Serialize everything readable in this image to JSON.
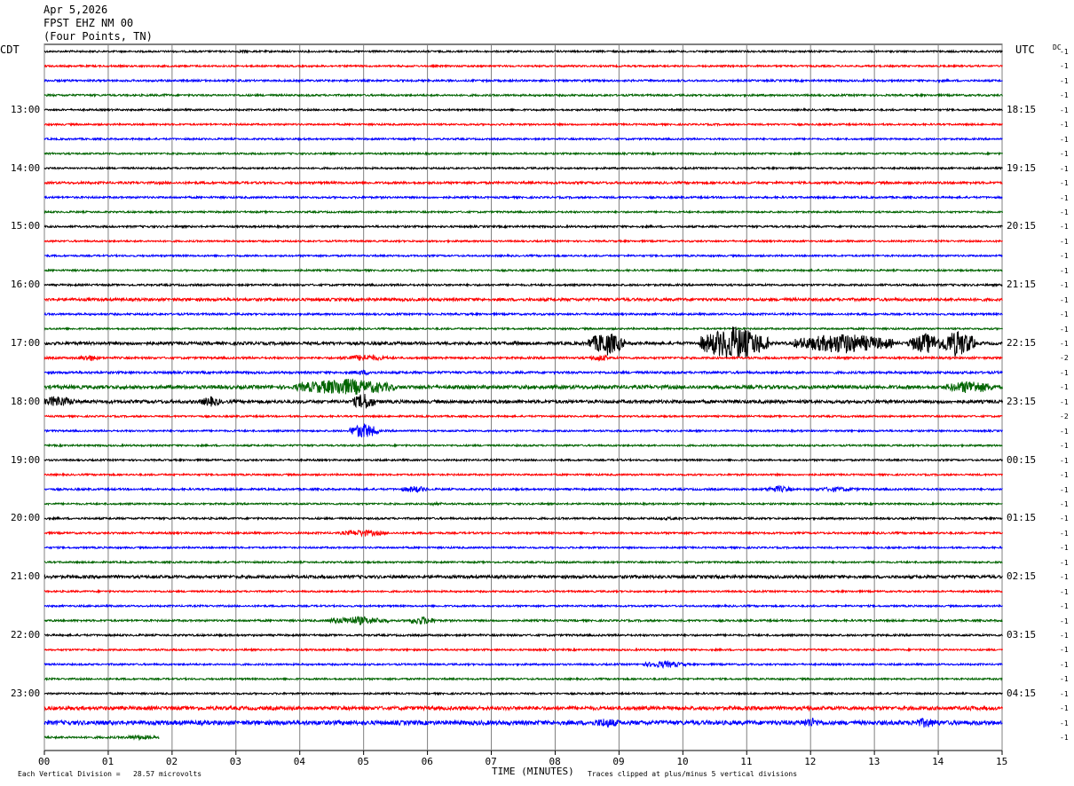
{
  "header": {
    "date": "Apr 5,2026",
    "station": "FPST EHZ NM 00",
    "location": "(Four Points, TN)"
  },
  "left_zone_label": "CDT",
  "right_zone_label": "UTC",
  "dc_label": "DC",
  "footer": {
    "division_note": "Each Vertical Division =   28.57 microvolts",
    "x_axis_title": "TIME (MINUTES)",
    "clip_note": "Traces clipped at plus/minus 5 vertical divisions"
  },
  "colors": {
    "trace_cycle": [
      "#000000",
      "#ff0000",
      "#0000ff",
      "#006400"
    ],
    "grid": "#808080"
  },
  "chart_data": {
    "type": "line",
    "subtype": "helicorder",
    "x_unit": "minutes",
    "xlim": [
      0,
      15
    ],
    "x_ticks": [
      "00",
      "01",
      "02",
      "03",
      "04",
      "05",
      "06",
      "07",
      "08",
      "09",
      "10",
      "11",
      "12",
      "13",
      "14",
      "15"
    ],
    "rows_per_hour": 4,
    "minutes_per_row": 15,
    "start_time_cdt": "12:00",
    "left_hour_labels": [
      "13:00",
      "14:00",
      "15:00",
      "16:00",
      "17:00",
      "18:00",
      "19:00",
      "20:00",
      "21:00",
      "22:00",
      "23:00"
    ],
    "right_hour_labels": [
      "18:15",
      "19:15",
      "20:15",
      "21:15",
      "22:15",
      "23:15",
      "00:15",
      "01:15",
      "02:15",
      "03:15",
      "04:15"
    ],
    "dc_offsets": [
      "-1",
      "-1",
      "-1",
      "-1",
      "-1",
      "-1",
      "-1",
      "-1",
      "-1",
      "-1",
      "-1",
      "-1",
      "-1",
      "-1",
      "-1",
      "-1",
      "-1",
      "-1",
      "-1",
      "-1",
      "-1",
      "-2",
      "-1",
      "-1",
      "-1",
      "-2",
      "-1",
      "-1",
      "-1",
      "-1",
      "-1",
      "-1",
      "-1",
      "-1",
      "-1",
      "-1",
      "-1",
      "-1",
      "-1",
      "-1",
      "-1",
      "-1",
      "-1",
      "-1",
      "-1",
      "-1",
      "-1",
      "-1"
    ],
    "row_noise": [
      1.0,
      1.0,
      1.1,
      1.1,
      1.0,
      1.0,
      1.0,
      1.0,
      1.0,
      1.3,
      1.1,
      1.0,
      1.1,
      1.0,
      1.0,
      1.0,
      1.1,
      1.6,
      1.1,
      1.0,
      1.7,
      1.2,
      1.3,
      2.0,
      1.8,
      1.0,
      1.0,
      1.0,
      1.0,
      1.0,
      1.1,
      1.0,
      1.1,
      1.1,
      1.0,
      1.0,
      1.7,
      1.0,
      1.0,
      1.1,
      1.1,
      1.0,
      1.0,
      1.0,
      1.0,
      2.0,
      2.4,
      1.2
    ],
    "events": [
      {
        "row": 0,
        "minute": 3.1,
        "amp": 1.5,
        "duration": 0.3
      },
      {
        "row": 0,
        "minute": 9.5,
        "amp": 1.2,
        "duration": 0.2
      },
      {
        "row": 2,
        "minute": 14.0,
        "amp": 1.5,
        "duration": 0.2
      },
      {
        "row": 3,
        "minute": 1.9,
        "amp": 1.6,
        "duration": 0.2
      },
      {
        "row": 5,
        "minute": 10.5,
        "amp": 1.2,
        "duration": 0.4
      },
      {
        "row": 9,
        "minute": 1.8,
        "amp": 1.6,
        "duration": 0.5
      },
      {
        "row": 17,
        "minute": 8.4,
        "amp": 1.8,
        "duration": 0.6
      },
      {
        "row": 17,
        "minute": 9.6,
        "amp": 1.5,
        "duration": 0.5
      },
      {
        "row": 20,
        "minute": 7.4,
        "amp": 2.5,
        "duration": 0.4
      },
      {
        "row": 20,
        "minute": 8.8,
        "amp": 14,
        "duration": 0.4
      },
      {
        "row": 20,
        "minute": 10.8,
        "amp": 20,
        "duration": 0.9
      },
      {
        "row": 20,
        "minute": 12.5,
        "amp": 12,
        "duration": 1.4
      },
      {
        "row": 20,
        "minute": 13.8,
        "amp": 12,
        "duration": 0.4
      },
      {
        "row": 20,
        "minute": 14.3,
        "amp": 16,
        "duration": 0.4
      },
      {
        "row": 21,
        "minute": 0.7,
        "amp": 4,
        "duration": 0.2
      },
      {
        "row": 21,
        "minute": 5.0,
        "amp": 4,
        "duration": 0.6
      },
      {
        "row": 21,
        "minute": 8.7,
        "amp": 4,
        "duration": 0.2
      },
      {
        "row": 22,
        "minute": 5.0,
        "amp": 3,
        "duration": 0.3
      },
      {
        "row": 23,
        "minute": 4.7,
        "amp": 10,
        "duration": 1.4
      },
      {
        "row": 23,
        "minute": 14.5,
        "amp": 8,
        "duration": 0.6
      },
      {
        "row": 24,
        "minute": 0.2,
        "amp": 7,
        "duration": 0.4
      },
      {
        "row": 24,
        "minute": 2.6,
        "amp": 6,
        "duration": 0.2
      },
      {
        "row": 24,
        "minute": 5.0,
        "amp": 10,
        "duration": 0.2
      },
      {
        "row": 26,
        "minute": 5.0,
        "amp": 9,
        "duration": 0.3
      },
      {
        "row": 30,
        "minute": 5.8,
        "amp": 4,
        "duration": 0.3
      },
      {
        "row": 30,
        "minute": 11.5,
        "amp": 4,
        "duration": 0.3
      },
      {
        "row": 30,
        "minute": 12.4,
        "amp": 3,
        "duration": 0.6
      },
      {
        "row": 31,
        "minute": 6.1,
        "amp": 2,
        "duration": 0.2
      },
      {
        "row": 32,
        "minute": 9.8,
        "amp": 1.8,
        "duration": 0.6
      },
      {
        "row": 33,
        "minute": 5.0,
        "amp": 4,
        "duration": 0.6
      },
      {
        "row": 36,
        "minute": 9.6,
        "amp": 2,
        "duration": 1.0
      },
      {
        "row": 39,
        "minute": 4.9,
        "amp": 5,
        "duration": 0.8
      },
      {
        "row": 39,
        "minute": 5.9,
        "amp": 5,
        "duration": 0.3
      },
      {
        "row": 42,
        "minute": 9.7,
        "amp": 4,
        "duration": 0.6
      },
      {
        "row": 45,
        "minute": 6.0,
        "amp": 2,
        "duration": 0.4
      },
      {
        "row": 45,
        "minute": 12.0,
        "amp": 3,
        "duration": 0.3
      },
      {
        "row": 45,
        "minute": 14.5,
        "amp": 2.5,
        "duration": 0.5
      },
      {
        "row": 46,
        "minute": 8.8,
        "amp": 6,
        "duration": 0.3
      },
      {
        "row": 46,
        "minute": 12.0,
        "amp": 6,
        "duration": 0.2
      },
      {
        "row": 46,
        "minute": 13.8,
        "amp": 6,
        "duration": 0.3
      },
      {
        "row": 47,
        "minute": 1.5,
        "amp": 3,
        "duration": 0.4
      }
    ],
    "last_row_end_minute": 1.8
  }
}
